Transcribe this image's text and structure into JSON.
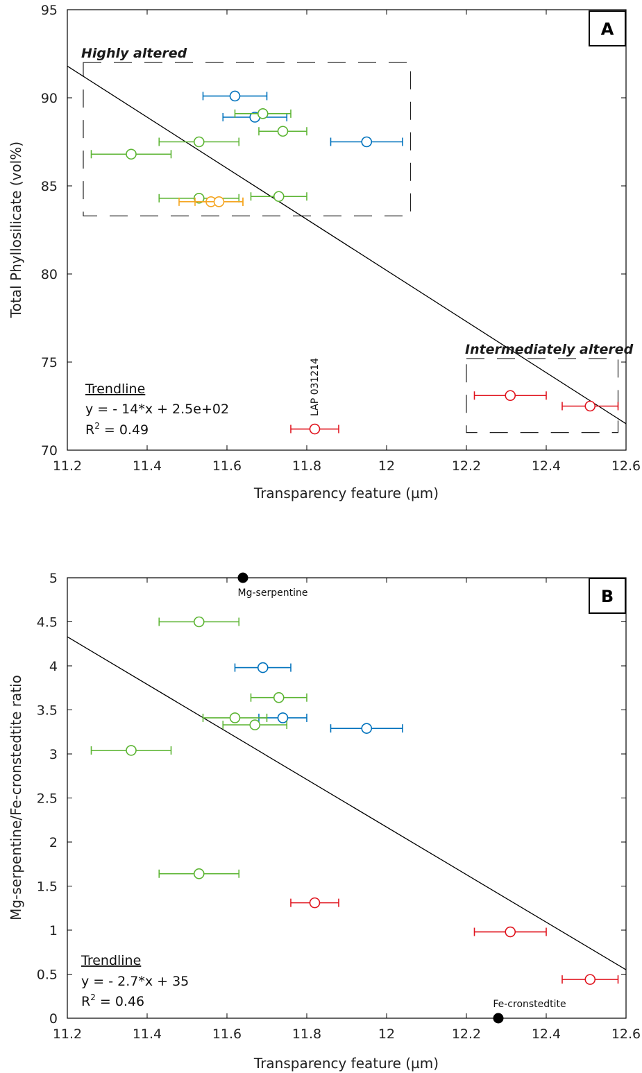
{
  "chart_data": [
    {
      "id": "A",
      "type": "scatter",
      "panel_label": "A",
      "xlabel": "Transparency feature (µm)",
      "ylabel": "Total Phyllosilicate (vol%)",
      "xlim": [
        11.2,
        12.6
      ],
      "ylim": [
        70,
        95
      ],
      "x_ticks": [
        "11.2",
        "11.4",
        "11.6",
        "11.8",
        "12",
        "12.2",
        "12.4",
        "12.6"
      ],
      "y_ticks": [
        "70",
        "75",
        "80",
        "85",
        "90",
        "95"
      ],
      "series": [
        {
          "color": "#0072BD",
          "points": [
            {
              "x": 11.62,
              "y": 90.1,
              "xerr": [
                11.54,
                11.7
              ]
            },
            {
              "x": 11.67,
              "y": 88.9,
              "xerr": [
                11.59,
                11.75
              ]
            },
            {
              "x": 11.95,
              "y": 87.5,
              "xerr": [
                11.86,
                12.04
              ]
            }
          ]
        },
        {
          "color": "#5DB534",
          "points": [
            {
              "x": 11.69,
              "y": 89.1,
              "xerr": [
                11.62,
                11.76
              ]
            },
            {
              "x": 11.74,
              "y": 88.1,
              "xerr": [
                11.68,
                11.8
              ]
            },
            {
              "x": 11.53,
              "y": 87.5,
              "xerr": [
                11.43,
                11.63
              ]
            },
            {
              "x": 11.36,
              "y": 86.8,
              "xerr": [
                11.26,
                11.46
              ]
            },
            {
              "x": 11.53,
              "y": 84.3,
              "xerr": [
                11.43,
                11.63
              ]
            },
            {
              "x": 11.73,
              "y": 84.4,
              "xerr": [
                11.66,
                11.8
              ]
            }
          ]
        },
        {
          "color": "#F5A623",
          "points": [
            {
              "x": 11.56,
              "y": 84.1,
              "xerr": [
                11.48,
                11.64
              ]
            },
            {
              "x": 11.58,
              "y": 84.1,
              "xerr": [
                11.52,
                11.64
              ]
            }
          ]
        },
        {
          "color": "#E0141E",
          "points": [
            {
              "x": 11.82,
              "y": 71.2,
              "xerr": [
                11.76,
                11.88
              ]
            },
            {
              "x": 12.31,
              "y": 73.1,
              "xerr": [
                12.22,
                12.4
              ]
            },
            {
              "x": 12.51,
              "y": 72.5,
              "xerr": [
                12.44,
                12.58
              ]
            }
          ]
        }
      ],
      "trendline": {
        "x": [
          11.2,
          12.6
        ],
        "y": [
          91.8,
          71.5
        ]
      },
      "boxes": [
        {
          "label": "Highly altered",
          "x": [
            11.24,
            12.06
          ],
          "y": [
            83.3,
            92.0
          ]
        },
        {
          "label": "Intermediately altered",
          "x": [
            12.2,
            12.58
          ],
          "y": [
            71.0,
            75.2
          ]
        }
      ],
      "annotations": [
        {
          "text": "LAP 031214",
          "x": 11.82,
          "y": 71.2,
          "rotated": true
        }
      ],
      "trend_text": {
        "title": "Trendline",
        "equation": "y = - 14*x + 2.5e+02",
        "r2_prefix": "R",
        "r2_sup": "2",
        "r2_value": " = 0.49"
      }
    },
    {
      "id": "B",
      "type": "scatter",
      "panel_label": "B",
      "xlabel": "Transparency feature (µm)",
      "ylabel": "Mg-serpentine/Fe-cronstedtite ratio",
      "xlim": [
        11.2,
        12.6
      ],
      "ylim": [
        0,
        5
      ],
      "x_ticks": [
        "11.2",
        "11.4",
        "11.6",
        "11.8",
        "12",
        "12.2",
        "12.4",
        "12.6"
      ],
      "y_ticks": [
        "0",
        "0.5",
        "1",
        "1.5",
        "2",
        "2.5",
        "3",
        "3.5",
        "4",
        "4.5",
        "5"
      ],
      "series": [
        {
          "color": "#0072BD",
          "points": [
            {
              "x": 11.69,
              "y": 3.98,
              "xerr": [
                11.62,
                11.76
              ]
            },
            {
              "x": 11.74,
              "y": 3.41,
              "xerr": [
                11.68,
                11.8
              ]
            },
            {
              "x": 11.95,
              "y": 3.29,
              "xerr": [
                11.86,
                12.04
              ]
            }
          ]
        },
        {
          "color": "#5DB534",
          "points": [
            {
              "x": 11.53,
              "y": 4.5,
              "xerr": [
                11.43,
                11.63
              ]
            },
            {
              "x": 11.73,
              "y": 3.64,
              "xerr": [
                11.66,
                11.8
              ]
            },
            {
              "x": 11.62,
              "y": 3.41,
              "xerr": [
                11.54,
                11.7
              ]
            },
            {
              "x": 11.67,
              "y": 3.33,
              "xerr": [
                11.59,
                11.75
              ]
            },
            {
              "x": 11.36,
              "y": 3.04,
              "xerr": [
                11.26,
                11.46
              ]
            },
            {
              "x": 11.53,
              "y": 1.64,
              "xerr": [
                11.43,
                11.63
              ]
            }
          ]
        },
        {
          "color": "#E0141E",
          "points": [
            {
              "x": 11.82,
              "y": 1.31,
              "xerr": [
                11.76,
                11.88
              ]
            },
            {
              "x": 12.31,
              "y": 0.98,
              "xerr": [
                12.22,
                12.4
              ]
            },
            {
              "x": 12.51,
              "y": 0.44,
              "xerr": [
                12.44,
                12.58
              ]
            }
          ]
        }
      ],
      "endmembers": [
        {
          "label": "Mg-serpentine",
          "x": 11.64,
          "y": 5.0
        },
        {
          "label": "Fe-cronstedtite",
          "x": 12.28,
          "y": 0.0
        }
      ],
      "trendline": {
        "x": [
          11.2,
          12.6
        ],
        "y": [
          4.33,
          0.55
        ]
      },
      "trend_text": {
        "title": "Trendline",
        "equation": "y = - 2.7*x + 35",
        "r2_prefix": "R",
        "r2_sup": "2",
        "r2_value": " = 0.46"
      }
    }
  ]
}
